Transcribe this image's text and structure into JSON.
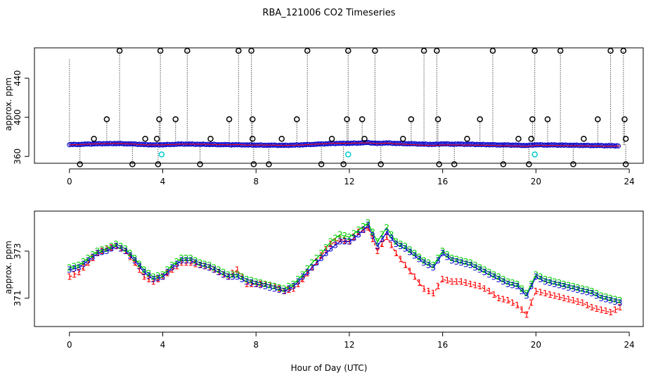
{
  "title": "RBA_121006  CO2 Timeseries",
  "colors": {
    "black": "#000000",
    "red": "#ff0000",
    "green": "#00cc00",
    "blue": "#0000cc",
    "cyan": "#00cccc",
    "dotted": "#000000"
  },
  "chart_data": [
    {
      "type": "scatter",
      "name": "top-panel",
      "ylabel": "approx. ppm",
      "xlabel": "",
      "xlim": [
        -1.5,
        24.6
      ],
      "ylim": [
        353,
        471
      ],
      "xticks": [
        0,
        4,
        8,
        12,
        16,
        20,
        24
      ],
      "yticks": [
        360,
        400,
        440
      ],
      "ytick_labels": [
        "360",
        "400",
        "440"
      ],
      "flagged_high_x": [
        2.15,
        3.9,
        5.05,
        7.25,
        7.8,
        10.2,
        11.95,
        13.1,
        15.2,
        15.75,
        18.15,
        19.95,
        21.05,
        23.2,
        23.75
      ],
      "flagged_high_y": 468,
      "flagged_mid_x": [
        1.6,
        3.85,
        4.55,
        6.85,
        7.85,
        9.75,
        11.9,
        12.55,
        14.65,
        15.8,
        17.6,
        19.85,
        20.5,
        22.65,
        23.8
      ],
      "flagged_mid_y": 398,
      "flagged_low_x": [
        0.45,
        2.7,
        3.8,
        5.6,
        7.9,
        8.55,
        10.8,
        11.75,
        13.35,
        15.85,
        16.5,
        18.6,
        19.7,
        21.6,
        23.85
      ],
      "flagged_low_y": 352,
      "flagged_near_x": [
        1.05,
        3.25,
        3.75,
        6.05,
        7.85,
        9.1,
        11.25,
        12.65,
        14.3,
        17.05,
        19.25,
        19.8,
        22.05,
        23.85
      ],
      "flagged_near_y": 378,
      "cyan_x": [
        3.95,
        11.95,
        19.95
      ],
      "cyan_y": 362,
      "baseline_note": "main series ~371-374 ppm shown as blue circles"
    },
    {
      "type": "line",
      "name": "bottom-panel",
      "ylabel": "approx. ppm",
      "xlabel": "Hour of Day (UTC)",
      "xlim": [
        -1.5,
        24.6
      ],
      "ylim": [
        369.8,
        374.7
      ],
      "xticks": [
        0,
        4,
        8,
        12,
        16,
        20,
        24
      ],
      "yticks": [
        371,
        373
      ],
      "ytick_labels": [
        "371",
        "373"
      ],
      "series": [
        {
          "name": "1",
          "color": "#ff0000",
          "label": "1"
        },
        {
          "name": "2",
          "color": "#00cc00",
          "label": "2"
        },
        {
          "name": "3",
          "color": "#0000cc",
          "label": "3"
        }
      ],
      "x": [
        0.0,
        0.4,
        0.8,
        1.2,
        1.6,
        2.0,
        2.4,
        2.8,
        3.2,
        3.6,
        4.0,
        4.4,
        4.8,
        5.2,
        5.6,
        6.0,
        6.4,
        6.8,
        7.2,
        7.6,
        8.0,
        8.4,
        8.8,
        9.2,
        9.6,
        10.0,
        10.4,
        10.8,
        11.2,
        11.6,
        12.0,
        12.4,
        12.8,
        13.2,
        13.6,
        14.0,
        14.4,
        14.8,
        15.2,
        15.6,
        16.0,
        16.4,
        16.8,
        17.2,
        17.6,
        18.0,
        18.4,
        18.8,
        19.2,
        19.6,
        20.0,
        20.4,
        20.8,
        21.2,
        21.6,
        22.0,
        22.4,
        22.8,
        23.2,
        23.6
      ],
      "s3": [
        372.2,
        372.3,
        372.6,
        372.9,
        373.0,
        373.2,
        373.0,
        372.6,
        372.1,
        371.8,
        371.9,
        372.3,
        372.6,
        372.6,
        372.4,
        372.3,
        372.1,
        371.9,
        371.9,
        371.7,
        371.6,
        371.5,
        371.4,
        371.3,
        371.5,
        371.9,
        372.3,
        372.7,
        373.1,
        373.4,
        373.4,
        373.7,
        374.1,
        373.2,
        373.8,
        373.3,
        373.1,
        372.8,
        372.5,
        372.3,
        372.9,
        372.6,
        372.5,
        372.4,
        372.2,
        372.0,
        371.8,
        371.6,
        371.5,
        371.1,
        371.9,
        371.7,
        371.6,
        371.5,
        371.4,
        371.3,
        371.2,
        371.0,
        370.9,
        370.8
      ],
      "s2": [
        372.3,
        372.4,
        372.7,
        373.0,
        373.1,
        373.3,
        373.1,
        372.7,
        372.2,
        371.9,
        372.0,
        372.4,
        372.7,
        372.7,
        372.5,
        372.4,
        372.2,
        372.0,
        372.0,
        371.8,
        371.7,
        371.6,
        371.5,
        371.4,
        371.6,
        372.0,
        372.5,
        372.9,
        373.4,
        373.7,
        373.6,
        373.9,
        374.2,
        373.4,
        374.0,
        373.4,
        373.2,
        372.9,
        372.6,
        372.4,
        373.0,
        372.7,
        372.6,
        372.5,
        372.3,
        372.1,
        371.9,
        371.7,
        371.6,
        371.2,
        372.0,
        371.8,
        371.7,
        371.6,
        371.5,
        371.4,
        371.3,
        371.1,
        371.0,
        370.9
      ],
      "s1": [
        371.9,
        372.1,
        372.5,
        372.9,
        373.1,
        373.2,
        373.0,
        372.5,
        371.9,
        371.7,
        371.9,
        372.2,
        372.5,
        372.5,
        372.4,
        372.3,
        372.1,
        371.9,
        372.2,
        371.6,
        371.6,
        371.6,
        371.5,
        371.3,
        371.4,
        371.8,
        372.3,
        372.8,
        373.3,
        373.5,
        373.4,
        373.8,
        374.0,
        373.0,
        373.6,
        372.9,
        372.4,
        371.9,
        371.4,
        371.2,
        371.8,
        371.7,
        371.7,
        371.6,
        371.5,
        371.3,
        371.0,
        370.9,
        370.7,
        370.3,
        371.3,
        371.2,
        371.1,
        371.0,
        370.9,
        370.8,
        370.6,
        370.5,
        370.4,
        370.6
      ]
    }
  ]
}
